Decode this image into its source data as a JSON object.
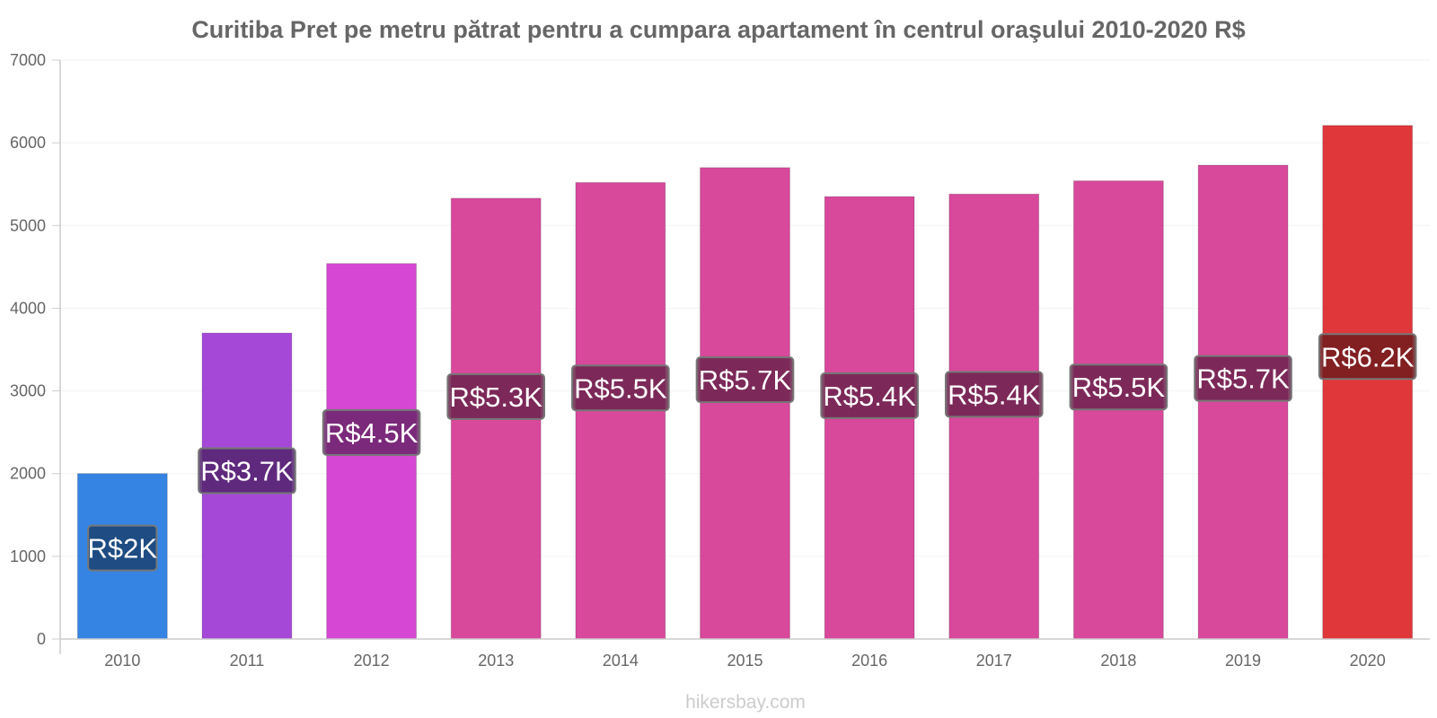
{
  "chart_data": {
    "type": "bar",
    "title": "Curitiba Pret pe metru pătrat pentru a cumpara apartament în centrul oraşului 2010-2020 R$",
    "xlabel": "",
    "ylabel": "",
    "ylim": [
      0,
      7000
    ],
    "yticks": [
      0,
      1000,
      2000,
      3000,
      4000,
      5000,
      6000,
      7000
    ],
    "categories": [
      "2010",
      "2011",
      "2012",
      "2013",
      "2014",
      "2015",
      "2016",
      "2017",
      "2018",
      "2019",
      "2020"
    ],
    "values": [
      2000,
      3700,
      4540,
      5330,
      5520,
      5700,
      5350,
      5380,
      5540,
      5730,
      6210
    ],
    "labels": [
      "R$2K",
      "R$3.7K",
      "R$4.5K",
      "R$5.3K",
      "R$5.5K",
      "R$5.7K",
      "R$5.4K",
      "R$5.4K",
      "R$5.5K",
      "R$5.7K",
      "R$6.2K"
    ],
    "colors": [
      "#3584e4",
      "#a548d8",
      "#d648d3",
      "#d8489b",
      "#d8489b",
      "#d8489b",
      "#d8489b",
      "#d8489b",
      "#d8489b",
      "#d8489b",
      "#e0373a"
    ],
    "label_box_colors": [
      "#1a4272",
      "#52246d",
      "#6b246a",
      "#6c244e",
      "#6c244e",
      "#6c244e",
      "#6c244e",
      "#6c244e",
      "#6c244e",
      "#6c244e",
      "#701b1d"
    ],
    "watermark": "hikersbay.com"
  }
}
